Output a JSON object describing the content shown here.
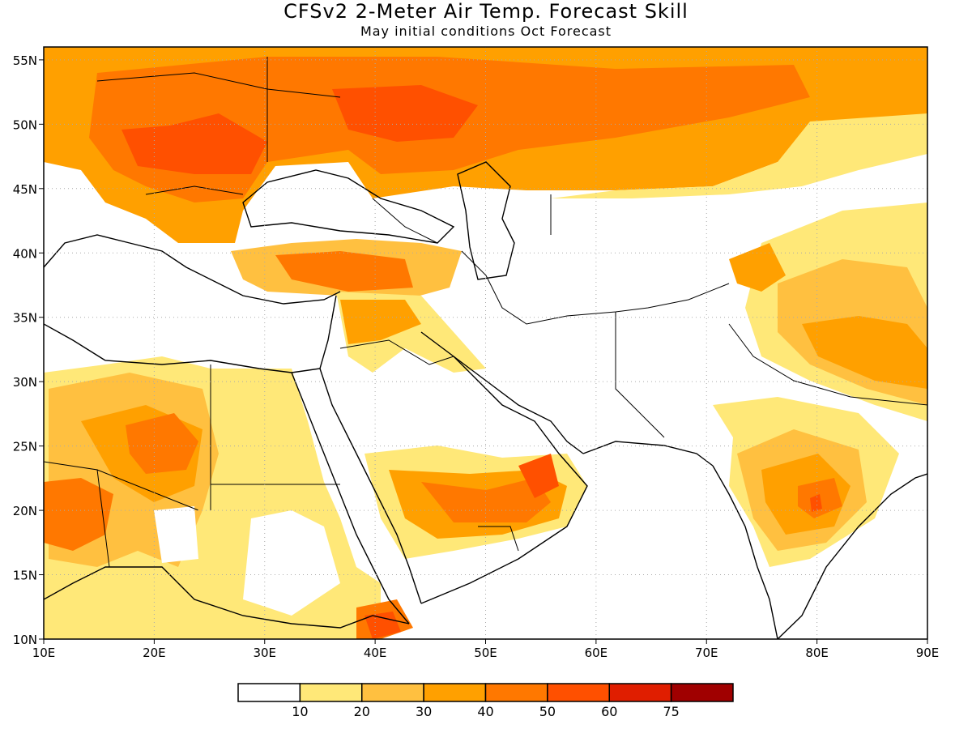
{
  "title": "CFSv2 2-Meter Air Temp. Forecast Skill",
  "subtitle": "May initial conditions  Oct Forecast",
  "axes": {
    "lon_ticks": [
      "10E",
      "20E",
      "30E",
      "40E",
      "50E",
      "60E",
      "70E",
      "80E",
      "90E"
    ],
    "lat_ticks": [
      "10N",
      "15N",
      "20N",
      "25N",
      "30N",
      "35N",
      "40N",
      "45N",
      "50N",
      "55N"
    ],
    "lon_range": [
      10,
      90
    ],
    "lat_range": [
      10,
      56
    ]
  },
  "legend": {
    "labels": [
      "10",
      "20",
      "30",
      "40",
      "50",
      "60",
      "75"
    ],
    "colors": [
      "#ffffff",
      "#ffe878",
      "#ffc040",
      "#ffa000",
      "#ff7800",
      "#ff5000",
      "#e01e00",
      "#a00000"
    ]
  }
}
